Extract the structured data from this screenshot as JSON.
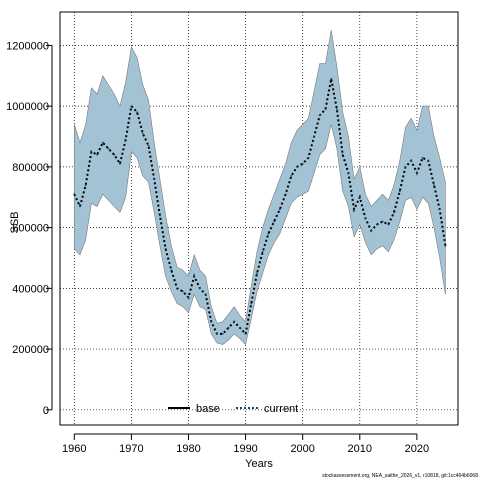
{
  "chart_data": {
    "type": "line",
    "xlabel": "Years",
    "ylabel": "SSB",
    "xlim": [
      1957.5,
      2027.2
    ],
    "ylim": [
      -50000,
      1310000
    ],
    "xticks": [
      1960,
      1970,
      1980,
      1990,
      2000,
      2010,
      2020
    ],
    "yticks": [
      0,
      200000,
      400000,
      600000,
      800000,
      1000000,
      1200000
    ],
    "grid": true,
    "legend_position": "bottom-center",
    "colors": {
      "band": "#a3c3d5",
      "band_edge": "#7a7a7a",
      "current": "#0b4a6e",
      "base": "#000000"
    },
    "legend": [
      {
        "label": "base",
        "style": "solid"
      },
      {
        "label": "current",
        "style": "dotted"
      }
    ],
    "x": [
      1960,
      1961,
      1962,
      1963,
      1964,
      1965,
      1966,
      1967,
      1968,
      1969,
      1970,
      1971,
      1972,
      1973,
      1974,
      1975,
      1976,
      1977,
      1978,
      1979,
      1980,
      1981,
      1982,
      1983,
      1984,
      1985,
      1986,
      1987,
      1988,
      1989,
      1990,
      1991,
      1992,
      1993,
      1994,
      1995,
      1996,
      1997,
      1998,
      1999,
      2000,
      2001,
      2002,
      2003,
      2004,
      2005,
      2006,
      2007,
      2008,
      2009,
      2010,
      2011,
      2012,
      2013,
      2014,
      2015,
      2016,
      2017,
      2018,
      2019,
      2020,
      2021,
      2022,
      2023,
      2024,
      2025
    ],
    "series": [
      {
        "name": "current",
        "values": [
          710000,
          670000,
          740000,
          850000,
          840000,
          880000,
          860000,
          840000,
          810000,
          890000,
          1000000,
          980000,
          910000,
          870000,
          760000,
          640000,
          530000,
          460000,
          400000,
          390000,
          370000,
          440000,
          400000,
          380000,
          290000,
          250000,
          250000,
          270000,
          290000,
          270000,
          250000,
          350000,
          450000,
          520000,
          580000,
          620000,
          660000,
          710000,
          770000,
          800000,
          810000,
          830000,
          900000,
          970000,
          990000,
          1090000,
          990000,
          840000,
          780000,
          660000,
          700000,
          630000,
          590000,
          610000,
          620000,
          610000,
          650000,
          720000,
          800000,
          820000,
          780000,
          830000,
          820000,
          740000,
          660000,
          540000
        ],
        "lower": [
          530000,
          510000,
          560000,
          680000,
          670000,
          710000,
          690000,
          670000,
          650000,
          700000,
          850000,
          830000,
          770000,
          750000,
          650000,
          540000,
          440000,
          390000,
          350000,
          340000,
          320000,
          380000,
          340000,
          330000,
          250000,
          220000,
          215000,
          230000,
          250000,
          235000,
          215000,
          300000,
          390000,
          450000,
          510000,
          550000,
          580000,
          630000,
          680000,
          700000,
          710000,
          720000,
          780000,
          840000,
          860000,
          940000,
          860000,
          720000,
          670000,
          570000,
          610000,
          550000,
          510000,
          530000,
          540000,
          520000,
          560000,
          620000,
          690000,
          700000,
          660000,
          700000,
          680000,
          600000,
          500000,
          380000
        ],
        "upper": [
          940000,
          880000,
          940000,
          1060000,
          1040000,
          1100000,
          1070000,
          1040000,
          1000000,
          1080000,
          1195000,
          1160000,
          1070000,
          1020000,
          880000,
          760000,
          640000,
          540000,
          470000,
          460000,
          440000,
          510000,
          460000,
          440000,
          340000,
          285000,
          290000,
          315000,
          340000,
          310000,
          290000,
          410000,
          520000,
          600000,
          660000,
          710000,
          760000,
          810000,
          880000,
          920000,
          940000,
          960000,
          1050000,
          1140000,
          1140000,
          1250000,
          1130000,
          980000,
          900000,
          760000,
          800000,
          710000,
          670000,
          690000,
          710000,
          690000,
          740000,
          820000,
          930000,
          960000,
          920000,
          1000000,
          1000000,
          900000,
          830000,
          750000
        ]
      }
    ]
  },
  "footnote": "stockassessment.org, NEA_saithe_2026_v1, r10818, git:1cc464b6068"
}
